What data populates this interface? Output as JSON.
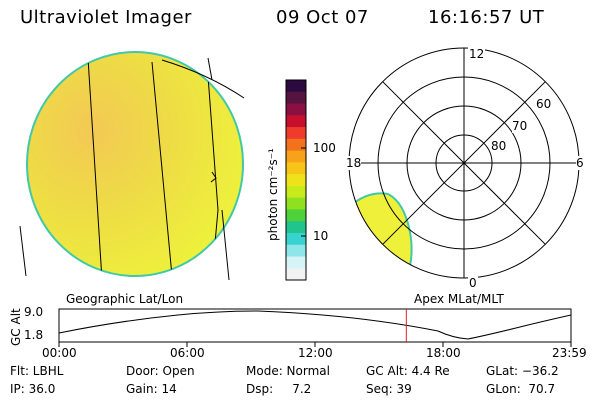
{
  "header": {
    "instrument": "Ultraviolet Imager",
    "date": "09 Oct 07",
    "time": "16:16:57 UT"
  },
  "colorbar": {
    "label": "photon cm⁻²s⁻¹",
    "ticks": [
      "100",
      "10"
    ],
    "colors": [
      "#2b0b3f",
      "#55133f",
      "#8a0f43",
      "#c8102e",
      "#ef3b2c",
      "#f2711c",
      "#f6a21a",
      "#f7c518",
      "#eee31a",
      "#c7ea1a",
      "#8fe020",
      "#4fd13a",
      "#21c48c",
      "#36d3d0",
      "#8fe6ea",
      "#d6f3f5",
      "#f2f2f2"
    ]
  },
  "polar": {
    "hour_labels": {
      "top": "12",
      "left": "18",
      "right": "6",
      "bottom": "0"
    },
    "lat_labels": [
      "60",
      "70",
      "80"
    ]
  },
  "timeline": {
    "left_label": "Geographic Lat/Lon",
    "right_label": "Apex MLat/MLT",
    "y_axis_label": "GC Alt",
    "y_ticks": [
      "9.0",
      "1.8"
    ],
    "x_ticks": [
      "00:00",
      "06:00",
      "12:00",
      "18:00",
      "23:59"
    ],
    "marker_time_hours": 16.28
  },
  "params": [
    [
      "Flt: LBHL",
      "Door: Open",
      "Mode: Normal",
      "GC Alt: 4.4 Re",
      "GLat: −36.2"
    ],
    [
      "IP: 36.0",
      "Gain: 14",
      "Dsp:     7.2",
      "Seq: 39",
      "GLon:  70.7"
    ]
  ],
  "colors": {
    "disk_base": "#eef03a",
    "disk_warm": "#f1d54a",
    "disk_rim": "#3fc9a8",
    "marker": "#e0201a"
  }
}
